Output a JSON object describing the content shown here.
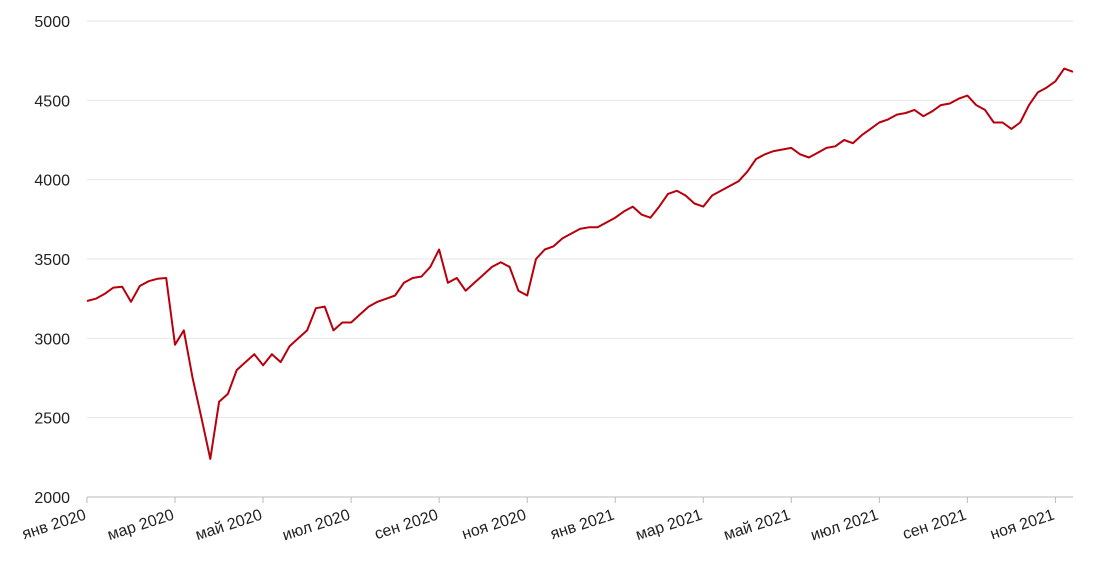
{
  "chart_data": {
    "type": "line",
    "x": [
      0,
      0.2,
      0.4,
      0.6,
      0.8,
      1,
      1.2,
      1.4,
      1.6,
      1.8,
      2,
      2.2,
      2.4,
      2.6,
      2.8,
      3,
      3.2,
      3.4,
      3.6,
      3.8,
      4,
      4.2,
      4.4,
      4.6,
      4.8,
      5,
      5.2,
      5.4,
      5.6,
      5.8,
      6,
      6.2,
      6.4,
      6.6,
      6.8,
      7,
      7.2,
      7.4,
      7.6,
      7.8,
      8,
      8.2,
      8.4,
      8.6,
      8.8,
      9,
      9.2,
      9.4,
      9.6,
      9.8,
      10,
      10.2,
      10.4,
      10.6,
      10.8,
      11,
      11.2,
      11.4,
      11.6,
      11.8,
      12,
      12.2,
      12.4,
      12.6,
      12.8,
      13,
      13.2,
      13.4,
      13.6,
      13.8,
      14,
      14.2,
      14.4,
      14.6,
      14.8,
      15,
      15.2,
      15.4,
      15.6,
      15.8,
      16,
      16.2,
      16.4,
      16.6,
      16.8,
      17,
      17.2,
      17.4,
      17.6,
      17.8,
      18,
      18.2,
      18.4,
      18.6,
      18.8,
      19,
      19.2,
      19.4,
      19.6,
      19.8,
      20,
      20.2,
      20.4,
      20.6,
      20.8,
      21,
      21.2,
      21.4,
      21.6,
      21.8,
      22,
      22.2,
      22.4
    ],
    "series": [
      {
        "color": "#b8000d",
        "values": [
          3235,
          3250,
          3280,
          3320,
          3325,
          3230,
          3330,
          3360,
          3375,
          3380,
          2960,
          3050,
          2750,
          2500,
          2240,
          2600,
          2650,
          2800,
          2850,
          2900,
          2830,
          2900,
          2850,
          2950,
          3000,
          3050,
          3190,
          3200,
          3050,
          3100,
          3100,
          3150,
          3200,
          3230,
          3250,
          3270,
          3350,
          3380,
          3390,
          3450,
          3560,
          3350,
          3380,
          3300,
          3350,
          3400,
          3450,
          3480,
          3450,
          3300,
          3270,
          3500,
          3560,
          3580,
          3630,
          3660,
          3690,
          3700,
          3700,
          3730,
          3760,
          3800,
          3830,
          3780,
          3760,
          3830,
          3910,
          3930,
          3900,
          3850,
          3830,
          3900,
          3930,
          3960,
          3990,
          4050,
          4130,
          4160,
          4180,
          4190,
          4200,
          4160,
          4140,
          4170,
          4200,
          4210,
          4250,
          4230,
          4280,
          4320,
          4360,
          4380,
          4410,
          4420,
          4440,
          4400,
          4430,
          4470,
          4480,
          4510,
          4530,
          4470,
          4440,
          4360,
          4360,
          4320,
          4360,
          4470,
          4550,
          4580,
          4620,
          4700,
          4680
        ]
      }
    ],
    "xlim": [
      0,
      22.4
    ],
    "xticks": [
      {
        "value": 0,
        "label": "янв 2020"
      },
      {
        "value": 2,
        "label": "мар 2020"
      },
      {
        "value": 4,
        "label": "май 2020"
      },
      {
        "value": 6,
        "label": "июл 2020"
      },
      {
        "value": 8,
        "label": "сен 2020"
      },
      {
        "value": 10,
        "label": "ноя 2020"
      },
      {
        "value": 12,
        "label": "янв 2021"
      },
      {
        "value": 14,
        "label": "мар 2021"
      },
      {
        "value": 16,
        "label": "май 2021"
      },
      {
        "value": 18,
        "label": "июл 2021"
      },
      {
        "value": 20,
        "label": "сен 2021"
      },
      {
        "value": 22,
        "label": "ноя 2021"
      }
    ],
    "ylim": [
      2000,
      5000
    ],
    "yticks": [
      2000,
      2500,
      3000,
      3500,
      4000,
      4500,
      5000
    ],
    "grid": true
  }
}
